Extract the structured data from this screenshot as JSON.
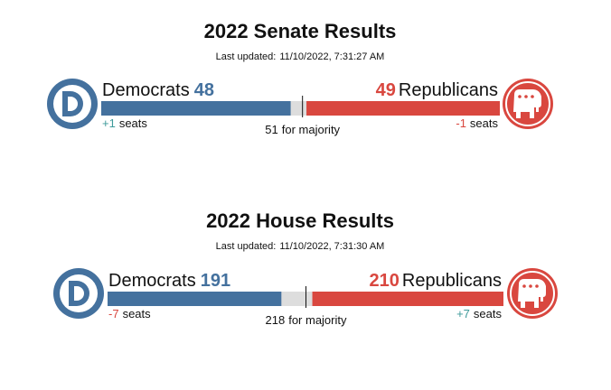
{
  "races": [
    {
      "title": "2022 Senate Results",
      "updated_label": "Last updated:",
      "updated": "11/10/2022, 7:31:27 AM",
      "dem": {
        "name": "Democrats",
        "seats": 48,
        "change": "+1",
        "unit": "seats"
      },
      "rep": {
        "name": "Republicans",
        "seats": 49,
        "change": "-1",
        "unit": "seats"
      },
      "majority": 51,
      "majority_label": "for majority"
    },
    {
      "title": "2022 House Results",
      "updated_label": "Last updated:",
      "updated": "11/10/2022, 7:31:30 AM",
      "dem": {
        "name": "Democrats",
        "seats": 191,
        "change": "-7",
        "unit": "seats"
      },
      "rep": {
        "name": "Republicans",
        "seats": 210,
        "change": "+7",
        "unit": "seats"
      },
      "majority": 218,
      "majority_label": "for majority"
    }
  ]
}
